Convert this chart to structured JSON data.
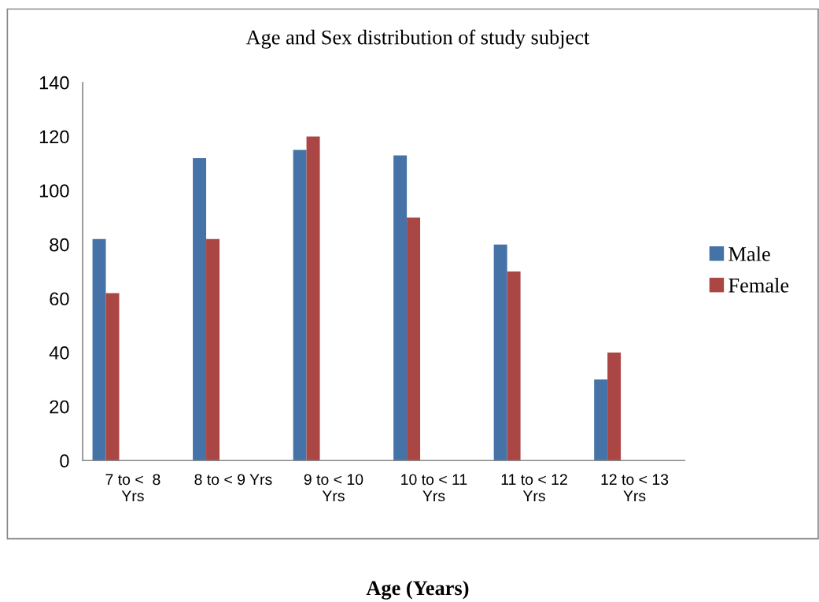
{
  "chart_data": {
    "type": "bar",
    "title": "Age and Sex distribution of study subject",
    "xlabel": "Age (Years)",
    "categories": [
      "7 to <  8 Yrs",
      "8 to < 9 Yrs",
      "9 to < 10 Yrs",
      "10 to < 11 Yrs",
      "11 to < 12 Yrs",
      "12 to < 13 Yrs"
    ],
    "series": [
      {
        "name": "Male",
        "color": "#4572a7",
        "values": [
          82,
          112,
          115,
          113,
          80,
          30
        ]
      },
      {
        "name": "Female",
        "color": "#aa4643",
        "values": [
          62,
          82,
          120,
          90,
          70,
          40
        ]
      }
    ],
    "ylim": [
      0,
      140
    ],
    "yticks": [
      0,
      20,
      40,
      60,
      80,
      100,
      120,
      140
    ],
    "grid": false,
    "legend": "right"
  }
}
